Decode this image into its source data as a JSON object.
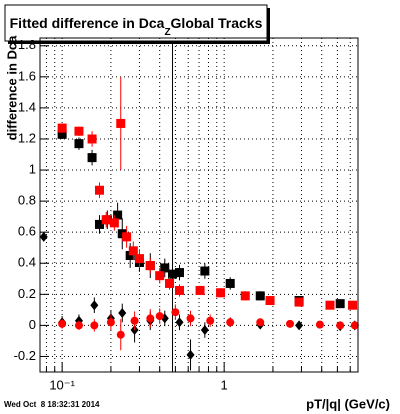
{
  "chart_data": {
    "type": "scatter",
    "title": "Fitted difference in Dca",
    "title_subscript": "Z",
    "title_end": "Global Tracks",
    "y_label": "difference in Dca",
    "x_label": "pT/|q| (GeV/c)",
    "footer": "Wed Oct  8 18:32:31 2014",
    "log_x": true,
    "grid": true,
    "xlim": [
      0.073,
      6.7
    ],
    "ylim": [
      -0.3,
      1.85
    ],
    "xticks": [
      {
        "value": 0.1,
        "label": "10⁻¹"
      },
      1
    ],
    "xminor": [
      0.08,
      0.09,
      0.2,
      0.3,
      0.4,
      0.5,
      0.6,
      0.7,
      0.8,
      0.9,
      2,
      3,
      4,
      5,
      6
    ],
    "yticks": [
      -0.2,
      0,
      0.2,
      0.4,
      0.6,
      0.8,
      1,
      1.2,
      1.4,
      1.6,
      1.8
    ],
    "series": [
      {
        "name": "black squares",
        "color": "#000000",
        "marker": "square",
        "x": [
          0.1,
          0.127,
          0.153,
          0.17,
          0.19,
          0.22,
          0.235,
          0.263,
          0.3,
          0.35,
          0.43,
          0.48,
          0.53,
          0.76,
          1.09,
          1.67,
          2.9,
          5.2
        ],
        "values": [
          1.23,
          1.17,
          1.08,
          0.65,
          0.68,
          0.71,
          0.59,
          0.45,
          0.405,
          0.385,
          0.37,
          0.33,
          0.34,
          0.35,
          0.27,
          0.19,
          0.16,
          0.14
        ],
        "errors": [
          0.03,
          0.04,
          0.05,
          0.06,
          0.06,
          0.08,
          0.1,
          0.08,
          0.06,
          0.08,
          0.06,
          1.5,
          0.05,
          0.05,
          0.04,
          0.03,
          0.02,
          0.02
        ]
      },
      {
        "name": "red squares",
        "color": "#ff0000",
        "marker": "square",
        "x": [
          0.1,
          0.127,
          0.153,
          0.17,
          0.187,
          0.21,
          0.23,
          0.25,
          0.275,
          0.3,
          0.35,
          0.4,
          0.46,
          0.53,
          0.71,
          0.95,
          1.35,
          1.92,
          2.9,
          4.5,
          6.2
        ],
        "values": [
          1.27,
          1.25,
          1.2,
          0.87,
          0.68,
          0.66,
          1.3,
          0.57,
          0.48,
          0.43,
          0.385,
          0.32,
          0.27,
          0.225,
          0.225,
          0.21,
          0.19,
          0.16,
          0.15,
          0.13,
          0.13
        ],
        "errors": [
          0.03,
          0.03,
          0.05,
          0.05,
          0.05,
          0.05,
          0.3,
          0.07,
          0.06,
          0.06,
          0.05,
          0.05,
          0.04,
          0.04,
          0.03,
          0.03,
          0.03,
          0.02,
          0.02,
          0.02,
          0.02
        ]
      },
      {
        "name": "black diamonds",
        "color": "#000000",
        "marker": "diamond",
        "x": [
          0.077,
          0.1,
          0.127,
          0.158,
          0.2,
          0.235,
          0.28,
          0.35,
          0.43,
          0.53,
          0.62,
          0.76,
          1.09,
          1.67,
          2.9,
          5.2,
          6.4
        ],
        "values": [
          0.57,
          0.02,
          0.03,
          0.13,
          0.045,
          0.08,
          -0.03,
          0.03,
          0.045,
          0.02,
          -0.19,
          -0.03,
          0.02,
          0.005,
          0,
          -0.005,
          0
        ],
        "errors": [
          0.02,
          0.04,
          0.04,
          0.05,
          0.05,
          0.06,
          0.08,
          0.06,
          0.05,
          0.05,
          0.1,
          0.05,
          0.03,
          0.02,
          0.02,
          0.02,
          0.02
        ]
      },
      {
        "name": "red circles",
        "color": "#ff0000",
        "marker": "circle",
        "x": [
          0.1,
          0.127,
          0.158,
          0.2,
          0.23,
          0.28,
          0.35,
          0.4,
          0.5,
          0.62,
          0.82,
          1.09,
          1.67,
          2.55,
          3.9,
          5.2,
          6.4
        ],
        "values": [
          0.01,
          0,
          0,
          0.02,
          -0.06,
          0.03,
          0.045,
          0.06,
          0.085,
          0.045,
          0.03,
          0.02,
          0.02,
          0.01,
          0.005,
          0,
          0
        ],
        "errors": [
          0.03,
          0.03,
          0.04,
          0.05,
          0.1,
          0.06,
          0.06,
          0.05,
          0.05,
          0.05,
          0.04,
          0.03,
          0.02,
          0.02,
          0.02,
          0.02,
          0.02
        ]
      }
    ]
  }
}
